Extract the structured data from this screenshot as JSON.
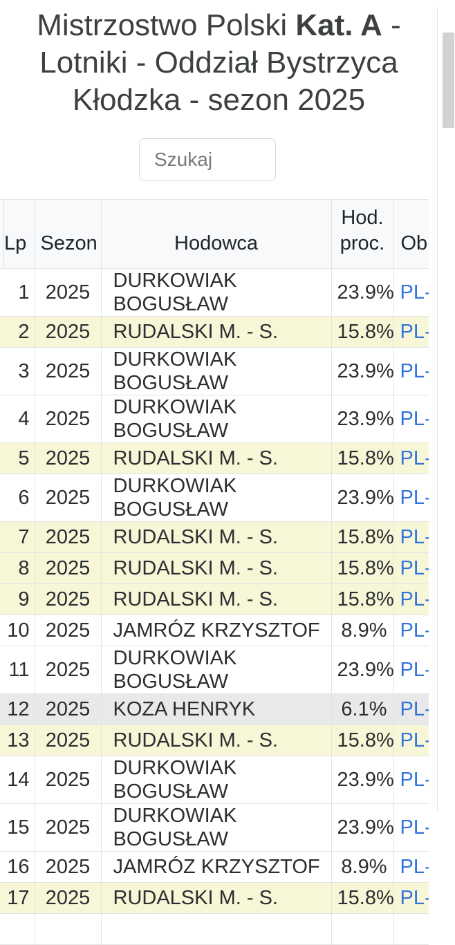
{
  "title": {
    "line1_pre": "Mistrzostwo Polski",
    "line1_bold": "Kat. A",
    "line1_post": "-",
    "line2": "Lotniki - Oddział Bystrzyca",
    "line3": "Kłodzka - sezon 2025"
  },
  "search": {
    "placeholder": "Szukaj"
  },
  "table": {
    "columns": [
      {
        "key": "lp",
        "label": "Lp"
      },
      {
        "key": "sezon",
        "label": "Sezon"
      },
      {
        "key": "hodowca",
        "label": "Hodowca"
      },
      {
        "key": "proc",
        "label": "Hod. proc."
      },
      {
        "key": "obraczka",
        "label": "Obrączka"
      }
    ],
    "rows": [
      {
        "lp": "1",
        "sezon": "2025",
        "hodowca": "DURKOWIAK BOGUSŁAW",
        "proc": "23.9%",
        "obraczka": "PL-",
        "highlight": "none"
      },
      {
        "lp": "2",
        "sezon": "2025",
        "hodowca": "RUDALSKI M. - S.",
        "proc": "15.8%",
        "obraczka": "PL-",
        "highlight": "yellow"
      },
      {
        "lp": "3",
        "sezon": "2025",
        "hodowca": "DURKOWIAK BOGUSŁAW",
        "proc": "23.9%",
        "obraczka": "PL-",
        "highlight": "none"
      },
      {
        "lp": "4",
        "sezon": "2025",
        "hodowca": "DURKOWIAK BOGUSŁAW",
        "proc": "23.9%",
        "obraczka": "PL-",
        "highlight": "none"
      },
      {
        "lp": "5",
        "sezon": "2025",
        "hodowca": "RUDALSKI M. - S.",
        "proc": "15.8%",
        "obraczka": "PL-",
        "highlight": "yellow"
      },
      {
        "lp": "6",
        "sezon": "2025",
        "hodowca": "DURKOWIAK BOGUSŁAW",
        "proc": "23.9%",
        "obraczka": "PL-",
        "highlight": "none"
      },
      {
        "lp": "7",
        "sezon": "2025",
        "hodowca": "RUDALSKI M. - S.",
        "proc": "15.8%",
        "obraczka": "PL-",
        "highlight": "yellow"
      },
      {
        "lp": "8",
        "sezon": "2025",
        "hodowca": "RUDALSKI M. - S.",
        "proc": "15.8%",
        "obraczka": "PL-",
        "highlight": "yellow"
      },
      {
        "lp": "9",
        "sezon": "2025",
        "hodowca": "RUDALSKI M. - S.",
        "proc": "15.8%",
        "obraczka": "PL-",
        "highlight": "yellow"
      },
      {
        "lp": "10",
        "sezon": "2025",
        "hodowca": "JAMRÓZ KRZYSZTOF",
        "proc": "8.9%",
        "obraczka": "PL-",
        "highlight": "none"
      },
      {
        "lp": "11",
        "sezon": "2025",
        "hodowca": "DURKOWIAK BOGUSŁAW",
        "proc": "23.9%",
        "obraczka": "PL-",
        "highlight": "none"
      },
      {
        "lp": "12",
        "sezon": "2025",
        "hodowca": "KOZA HENRYK",
        "proc": "6.1%",
        "obraczka": "PL-",
        "highlight": "gray"
      },
      {
        "lp": "13",
        "sezon": "2025",
        "hodowca": "RUDALSKI M. - S.",
        "proc": "15.8%",
        "obraczka": "PL-",
        "highlight": "yellow"
      },
      {
        "lp": "14",
        "sezon": "2025",
        "hodowca": "DURKOWIAK BOGUSŁAW",
        "proc": "23.9%",
        "obraczka": "PL-",
        "highlight": "none"
      },
      {
        "lp": "15",
        "sezon": "2025",
        "hodowca": "DURKOWIAK BOGUSŁAW",
        "proc": "23.9%",
        "obraczka": "PL-",
        "highlight": "none"
      },
      {
        "lp": "16",
        "sezon": "2025",
        "hodowca": "JAMRÓZ KRZYSZTOF",
        "proc": "8.9%",
        "obraczka": "PL-",
        "highlight": "none"
      },
      {
        "lp": "17",
        "sezon": "2025",
        "hodowca": "RUDALSKI M. - S.",
        "proc": "15.8%",
        "obraczka": "PL-",
        "highlight": "yellow"
      }
    ],
    "partial_row_visible": true
  },
  "scrollbar": {
    "visible": true
  },
  "colors": {
    "row_yellow": "#f7f7d8",
    "row_gray": "#e9e9e9",
    "link_blue": "#3273dc",
    "header_bg": "#f8f9fa",
    "border": "#e2e3e4"
  }
}
